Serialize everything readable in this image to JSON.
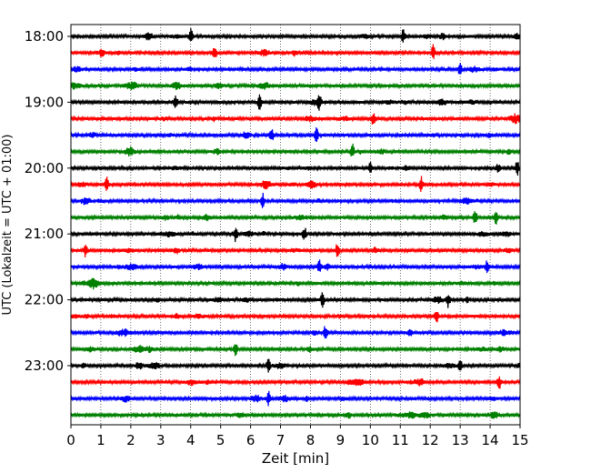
{
  "chart_data": {
    "type": "line",
    "title": "",
    "xlabel": "Zeit  [min]",
    "ylabel": "UTC (Lokalzeit = UTC + 01:00)",
    "xlim": [
      0,
      15
    ],
    "x_ticks": [
      "0",
      "1",
      "2",
      "3",
      "4",
      "5",
      "6",
      "7",
      "8",
      "9",
      "10",
      "11",
      "12",
      "13",
      "14",
      "15"
    ],
    "y_tick_labels": [
      "18:00",
      "19:00",
      "20:00",
      "21:00",
      "22:00",
      "23:00"
    ],
    "row_interval_minutes": 15,
    "start_time": "18:00",
    "row_count": 24,
    "color_cycle": [
      "#000000",
      "#ff0000",
      "#0000ff",
      "#008000"
    ],
    "grid": "vertical dotted lines at each minute",
    "legend": "none",
    "notable_events": [
      {
        "row": 0,
        "minute": 4.0
      },
      {
        "row": 0,
        "minute": 11.1
      },
      {
        "row": 1,
        "minute": 4.8
      },
      {
        "row": 1,
        "minute": 12.1
      },
      {
        "row": 2,
        "minute": 13.0
      },
      {
        "row": 4,
        "minute": 3.5
      },
      {
        "row": 4,
        "minute": 6.3
      },
      {
        "row": 4,
        "minute": 8.3
      },
      {
        "row": 5,
        "minute": 10.1
      },
      {
        "row": 6,
        "minute": 6.7
      },
      {
        "row": 6,
        "minute": 8.2
      },
      {
        "row": 7,
        "minute": 9.4
      },
      {
        "row": 8,
        "minute": 10.0
      },
      {
        "row": 8,
        "minute": 14.9
      },
      {
        "row": 9,
        "minute": 1.2
      },
      {
        "row": 9,
        "minute": 11.7
      },
      {
        "row": 10,
        "minute": 6.4
      },
      {
        "row": 11,
        "minute": 13.5
      },
      {
        "row": 11,
        "minute": 14.2
      },
      {
        "row": 12,
        "minute": 5.5
      },
      {
        "row": 12,
        "minute": 7.8
      },
      {
        "row": 13,
        "minute": 0.5
      },
      {
        "row": 13,
        "minute": 8.9
      },
      {
        "row": 14,
        "minute": 8.3
      },
      {
        "row": 14,
        "minute": 13.9
      },
      {
        "row": 16,
        "minute": 8.4
      },
      {
        "row": 16,
        "minute": 12.6
      },
      {
        "row": 17,
        "minute": 12.2
      },
      {
        "row": 18,
        "minute": 8.5
      },
      {
        "row": 19,
        "minute": 5.5
      },
      {
        "row": 20,
        "minute": 6.6
      },
      {
        "row": 20,
        "minute": 13.0
      },
      {
        "row": 21,
        "minute": 14.3
      },
      {
        "row": 22,
        "minute": 6.6
      }
    ]
  }
}
